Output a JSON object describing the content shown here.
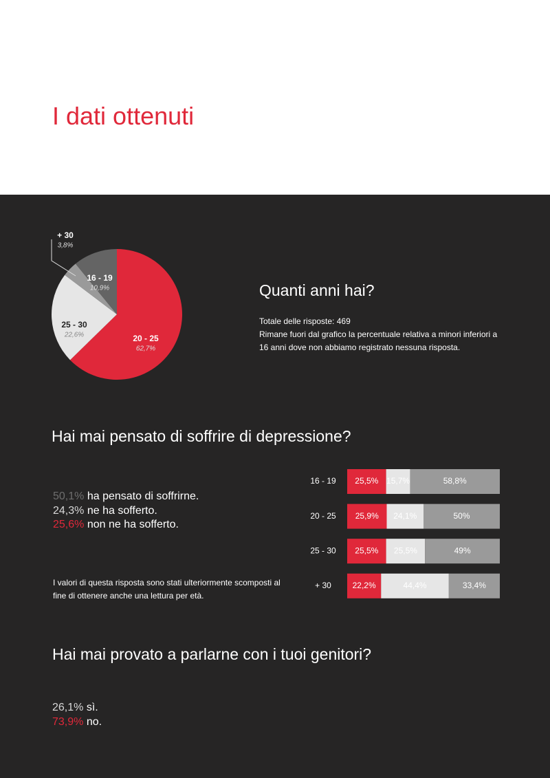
{
  "header": {
    "title": "I dati ottenuti"
  },
  "age": {
    "heading": "Quanti anni hai?",
    "lines": [
      "Totale delle risposte: 469",
      "Rimane fuori dal grafico la percentuale relativa a minori inferiori a 16 anni dove non abbiamo registrato nessuna risposta."
    ],
    "pie": {
      "type": "pie",
      "categories": [
        "20 - 25",
        "25 - 30",
        "+ 30",
        "16 - 19"
      ],
      "values": [
        62.7,
        22.6,
        3.8,
        10.9
      ],
      "value_labels": [
        "62,7%",
        "22,6%",
        "3,8%",
        "10,9%"
      ],
      "colors": [
        "#e0283a",
        "#e6e6e6",
        "#9a9a9a",
        "#646464"
      ]
    }
  },
  "depression": {
    "heading": "Hai mai pensato di soffrire di depressione?",
    "items": [
      {
        "value": "50,1%",
        "text": "ha pensato di soffrirne."
      },
      {
        "value": "24,3%",
        "text": "ne ha sofferto."
      },
      {
        "value": "25,6%",
        "text": "non ne ha sofferto."
      }
    ],
    "note": "I valori di questa risposta sono stati ulteriormente scomposti al fine di ottenere anche una lettura per età.",
    "bars": {
      "type": "bar",
      "stacked": true,
      "horizontal": true,
      "xlim": [
        0,
        100
      ],
      "categories": [
        "16 - 19",
        "20 - 25",
        "25 - 30",
        "+ 30"
      ],
      "series": [
        {
          "color": "#e0283a",
          "values": [
            25.5,
            25.9,
            25.5,
            22.2
          ],
          "value_labels": [
            "25,5%",
            "25,9%",
            "25,5%",
            "22,2%"
          ]
        },
        {
          "color": "#e6e6e6",
          "values": [
            15.7,
            24.1,
            25.5,
            44.4
          ],
          "value_labels": [
            "15,7%",
            "24,1%",
            "25,5%",
            "44,4%"
          ]
        },
        {
          "color": "#9a9a9a",
          "values": [
            58.8,
            50,
            49,
            33.4
          ],
          "value_labels": [
            "58,8%",
            "50%",
            "49%",
            "33,4%"
          ]
        }
      ]
    }
  },
  "parents": {
    "heading": "Hai mai provato a parlarne con i tuoi genitori?",
    "items": [
      {
        "value": "26,1%",
        "text": "sì."
      },
      {
        "value": "73,9%",
        "text": "no."
      }
    ]
  }
}
